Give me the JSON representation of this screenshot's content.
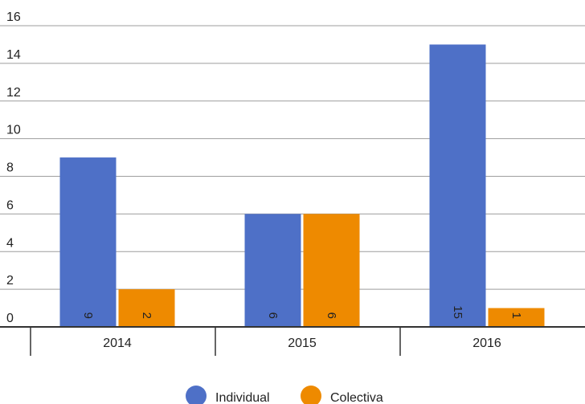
{
  "chart_data": {
    "type": "bar",
    "categories": [
      "2014",
      "2015",
      "2016"
    ],
    "series": [
      {
        "name": "Individual",
        "color": "#4e70c7",
        "values": [
          9,
          6,
          15
        ]
      },
      {
        "name": "Colectiva",
        "color": "#ee8a00",
        "values": [
          2,
          6,
          1
        ]
      }
    ],
    "ylim": [
      0,
      16
    ],
    "yticks": [
      0,
      2,
      4,
      6,
      8,
      10,
      12,
      14,
      16
    ],
    "grid": true,
    "legend": "bottom-center",
    "data_labels": true
  }
}
